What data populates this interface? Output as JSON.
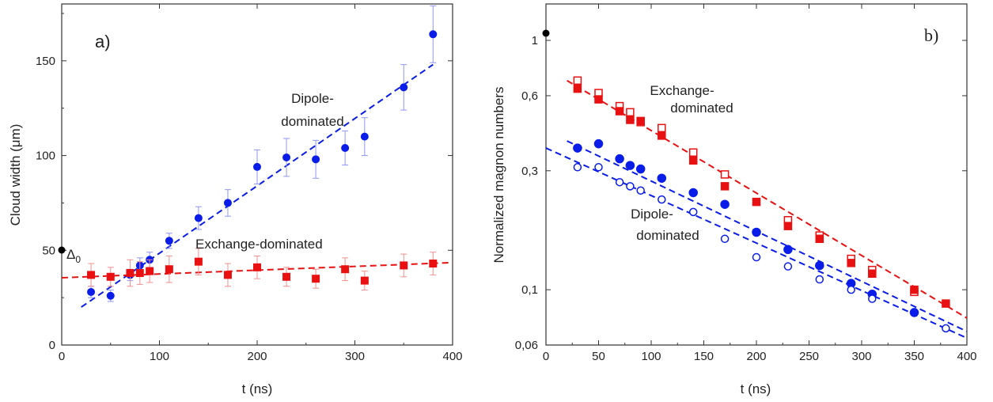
{
  "chart_data": [
    {
      "type": "scatter",
      "panel_label": "a)",
      "xlabel": "t (ns)",
      "ylabel": "Cloud width (μm)",
      "xlim": [
        0,
        400
      ],
      "ylim": [
        0,
        180
      ],
      "xticks": [
        0,
        100,
        200,
        300,
        400
      ],
      "yticks": [
        0,
        50,
        100,
        150
      ],
      "x_tick_labels": [
        "0",
        "100",
        "200",
        "300",
        "400"
      ],
      "y_tick_labels": [
        "0",
        "50",
        "100",
        "150"
      ],
      "grid": false,
      "marker_annotation": {
        "text": "Δ",
        "subscript": "0",
        "y": 50,
        "color": "#000000"
      },
      "series": [
        {
          "marker": "circle",
          "filled": true,
          "color": "#0a1de8",
          "label": "Dipole-",
          "label_line2": "dominated",
          "x": [
            30,
            50,
            70,
            80,
            90,
            110,
            140,
            170,
            200,
            230,
            260,
            290,
            310,
            350,
            380
          ],
          "y": [
            28,
            26,
            37,
            42,
            45,
            55,
            67,
            75,
            94,
            99,
            98,
            104,
            110,
            136,
            164
          ],
          "yerr": [
            3,
            3,
            3,
            4,
            4,
            4,
            6,
            7,
            9,
            10,
            10,
            9,
            10,
            12,
            15
          ],
          "fit": {
            "x": [
              20,
              380
            ],
            "y": [
              20,
              148
            ]
          }
        },
        {
          "marker": "square",
          "filled": true,
          "color": "#e81010",
          "label": "Exchange-dominated",
          "x": [
            30,
            50,
            70,
            80,
            90,
            110,
            140,
            170,
            200,
            230,
            260,
            290,
            310,
            350,
            380
          ],
          "y": [
            37,
            36,
            38,
            38,
            39,
            40,
            44,
            37,
            41,
            36,
            35,
            40,
            34,
            42,
            43
          ],
          "yerr": [
            6,
            5,
            7,
            6,
            6,
            7,
            7,
            6,
            6,
            5,
            5,
            6,
            5,
            6,
            6
          ],
          "fit": {
            "x": [
              0,
              400
            ],
            "y": [
              35.5,
              43.5
            ]
          }
        }
      ]
    },
    {
      "type": "scatter",
      "panel_label": "b)",
      "xlabel": "t (ns)",
      "ylabel": "Normalized magnon numbers",
      "xlim": [
        0,
        400
      ],
      "ylim": [
        0.06,
        1.4
      ],
      "yscale": "log",
      "xticks": [
        0,
        50,
        100,
        150,
        200,
        250,
        300,
        350,
        400
      ],
      "yticks": [
        0.06,
        0.1,
        0.3,
        0.6,
        1
      ],
      "x_tick_labels": [
        "0",
        "50",
        "100",
        "150",
        "200",
        "250",
        "300",
        "350",
        "400"
      ],
      "y_tick_labels": [
        "0,06",
        "0,1",
        "0,3",
        "0,6",
        "1"
      ],
      "grid": false,
      "marker_annotation": {
        "y": 1,
        "color": "#000000"
      },
      "annotations": [
        {
          "text": "Exchange-",
          "text_line2": "dominated",
          "color": "#222222"
        },
        {
          "text": "Dipole-",
          "text_line2": "dominated",
          "color": "#222222"
        }
      ],
      "series": [
        {
          "marker": "square",
          "filled": false,
          "color": "#e81010",
          "x": [
            30,
            50,
            70,
            80,
            90,
            110,
            140,
            170,
            230,
            260,
            290,
            310,
            350
          ],
          "y": [
            0.69,
            0.615,
            0.545,
            0.515,
            0.47,
            0.445,
            0.355,
            0.29,
            0.19,
            0.165,
            0.133,
            0.12,
            0.098
          ]
        },
        {
          "marker": "square",
          "filled": true,
          "color": "#e81010",
          "x": [
            30,
            50,
            70,
            80,
            90,
            110,
            140,
            170,
            200,
            230,
            260,
            290,
            310,
            350,
            380
          ],
          "y": [
            0.64,
            0.58,
            0.52,
            0.48,
            0.475,
            0.415,
            0.33,
            0.26,
            0.225,
            0.18,
            0.16,
            0.128,
            0.116,
            0.1,
            0.088
          ]
        },
        {
          "marker": "circle",
          "filled": true,
          "color": "#0a1de8",
          "x": [
            30,
            50,
            70,
            80,
            90,
            110,
            140,
            170,
            200,
            230,
            260,
            290,
            310,
            350
          ],
          "y": [
            0.37,
            0.385,
            0.335,
            0.315,
            0.305,
            0.28,
            0.245,
            0.22,
            0.17,
            0.145,
            0.125,
            0.106,
            0.096,
            0.081
          ]
        },
        {
          "marker": "circle",
          "filled": false,
          "color": "#0a1de8",
          "x": [
            30,
            50,
            70,
            80,
            90,
            110,
            140,
            170,
            200,
            230,
            260,
            290,
            310,
            380
          ],
          "y": [
            0.31,
            0.31,
            0.27,
            0.26,
            0.25,
            0.23,
            0.205,
            0.16,
            0.135,
            0.124,
            0.11,
            0.1,
            0.092,
            0.07
          ]
        }
      ],
      "fits": [
        {
          "color": "#e81010",
          "x": [
            20,
            400
          ],
          "y": [
            0.69,
            0.077
          ]
        },
        {
          "color": "#0a1de8",
          "x": [
            20,
            400
          ],
          "y": [
            0.395,
            0.068
          ]
        },
        {
          "color": "#0a1de8",
          "x": [
            0,
            400
          ],
          "y": [
            0.37,
            0.064
          ]
        }
      ]
    }
  ]
}
